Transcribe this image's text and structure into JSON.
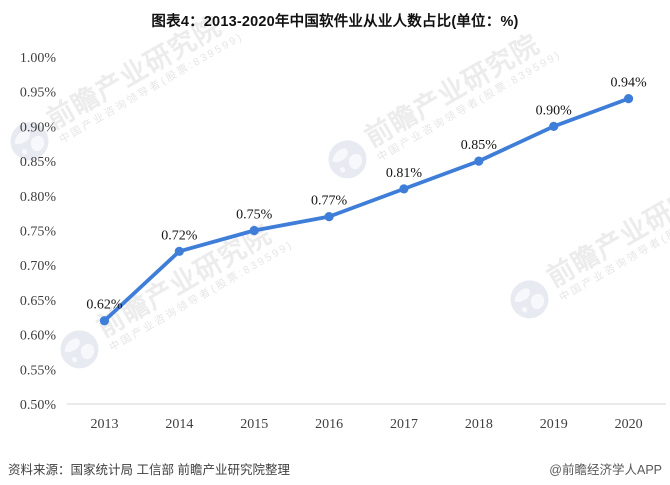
{
  "title": "图表4：2013-2020年中国软件业从业人数占比(单位：%)",
  "footer": {
    "source": "资料来源：国家统计局 工信部 前瞻产业研究院整理",
    "credit": "@前瞻经济学人APP"
  },
  "watermark": {
    "brand": "前瞻产业研究院",
    "tagline": "中国产业咨询领导者(股票:839599)"
  },
  "chart_data": {
    "type": "line",
    "title": "图表4：2013-2020年中国软件业从业人数占比(单位：%)",
    "categories": [
      "2013",
      "2014",
      "2015",
      "2016",
      "2017",
      "2018",
      "2019",
      "2020"
    ],
    "values": [
      0.62,
      0.72,
      0.75,
      0.77,
      0.81,
      0.85,
      0.9,
      0.94
    ],
    "point_labels": [
      "0.62%",
      "0.72%",
      "0.75%",
      "0.77%",
      "0.81%",
      "0.85%",
      "0.90%",
      "0.94%"
    ],
    "unit": "%",
    "xlabel": "",
    "ylabel": "",
    "ylim": [
      0.5,
      1.0
    ],
    "ytick_step": 0.05,
    "yticks": [
      "1.00%",
      "0.95%",
      "0.90%",
      "0.85%",
      "0.80%",
      "0.75%",
      "0.70%",
      "0.65%",
      "0.60%",
      "0.55%",
      "0.50%"
    ],
    "grid": false,
    "legend": "none",
    "line_color": "#3E7DD8",
    "marker_color": "#3E7DD8",
    "axis_color": "#d6d6d6"
  }
}
